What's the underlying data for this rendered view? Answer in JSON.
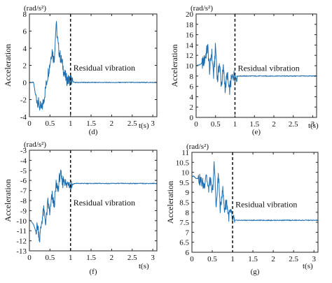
{
  "chart_data": [
    {
      "type": "line",
      "panel": "(d)",
      "unit": "(rad/s²)",
      "ylabel": "Acceleration",
      "xlabel": "t(s)",
      "xlim": [
        0,
        3.1
      ],
      "ylim": [
        -4,
        8
      ],
      "xticks": [
        0,
        0.5,
        1,
        1.5,
        2,
        2.5,
        3
      ],
      "xtick_labels": [
        "0",
        "0.5",
        "1",
        "1.5",
        "2",
        "2.5",
        "3"
      ],
      "yticks": [
        -4,
        -2,
        0,
        2,
        4,
        6,
        8
      ],
      "ytick_labels": [
        "-4",
        "-2",
        "0",
        "2",
        "4",
        "6",
        "8"
      ],
      "grid": false,
      "annotation": "Residual vibration",
      "vline_x": 1.0,
      "series_color": "#1f6fb0",
      "x": [
        0,
        0.1,
        0.15,
        0.2,
        0.25,
        0.3,
        0.35,
        0.4,
        0.45,
        0.5,
        0.55,
        0.6,
        0.65,
        0.7,
        0.75,
        0.8,
        0.85,
        0.9,
        0.95,
        1.0,
        1.05,
        1.1,
        1.5,
        2.0,
        2.5,
        3.1
      ],
      "y": [
        0,
        0,
        -1.5,
        -2.2,
        -2.8,
        -3.1,
        -2.0,
        -0.5,
        1.0,
        2.2,
        3.8,
        2.5,
        6.9,
        4.2,
        3.0,
        2.2,
        1.0,
        0.4,
        0.2,
        0.4,
        0.1,
        0.0,
        0.0,
        0.0,
        0.0,
        0.0
      ]
    },
    {
      "type": "line",
      "panel": "(e)",
      "unit": "(rad/s²)",
      "ylabel": "Acceleration",
      "xlabel": "t(s)",
      "xlim": [
        0,
        3.1
      ],
      "ylim": [
        0,
        20
      ],
      "xticks": [
        0,
        0.5,
        1,
        1.5,
        2,
        2.5,
        3
      ],
      "xtick_labels": [
        "0",
        "0.5",
        "1",
        "1.5",
        "2",
        "2.5",
        "3"
      ],
      "yticks": [
        0,
        2,
        4,
        6,
        8,
        10,
        12,
        14,
        16,
        18,
        20
      ],
      "ytick_labels": [
        "0",
        "2",
        "4",
        "6",
        "8",
        "10",
        "12",
        "14",
        "16",
        "18",
        "20"
      ],
      "grid": false,
      "annotation": "Residual vibration",
      "vline_x": 1.0,
      "series_color": "#1f6fb0",
      "x": [
        0,
        0.1,
        0.2,
        0.3,
        0.35,
        0.4,
        0.45,
        0.5,
        0.55,
        0.6,
        0.65,
        0.7,
        0.75,
        0.8,
        0.85,
        0.9,
        0.95,
        1.0,
        1.1,
        1.5,
        2.0,
        2.5,
        3.1
      ],
      "y": [
        10.0,
        10.2,
        10.8,
        13.5,
        9.0,
        12.8,
        8.0,
        13.8,
        7.0,
        10.5,
        6.2,
        9.5,
        5.5,
        8.5,
        5.0,
        7.0,
        8.2,
        7.9,
        8.0,
        8.0,
        8.0,
        8.0,
        8.0
      ]
    },
    {
      "type": "line",
      "panel": "(f)",
      "unit": "(rad/s²)",
      "ylabel": "Acceleration",
      "xlabel": "t(s)",
      "xlim": [
        0,
        3.1
      ],
      "ylim": [
        -13,
        -3
      ],
      "xticks": [
        0,
        0.5,
        1,
        1.5,
        2,
        2.5,
        3
      ],
      "xtick_labels": [
        "0",
        "0.5",
        "1",
        "1.5",
        "2",
        "2.5",
        "3"
      ],
      "yticks": [
        -13,
        -12,
        -11,
        -10,
        -9,
        -8,
        -7,
        -6,
        -5,
        -4,
        -3
      ],
      "ytick_labels": [
        "-13",
        "-12",
        "-11",
        "-10",
        "-9",
        "-8",
        "-7",
        "-6",
        "-5",
        "-4",
        "-3"
      ],
      "grid": false,
      "annotation": "Residual vibration",
      "vline_x": 1.0,
      "series_color": "#1f6fb0",
      "x": [
        0,
        0.05,
        0.1,
        0.15,
        0.2,
        0.25,
        0.3,
        0.35,
        0.4,
        0.45,
        0.5,
        0.55,
        0.6,
        0.65,
        0.7,
        0.75,
        0.8,
        0.85,
        0.9,
        0.95,
        1.0,
        1.1,
        1.5,
        2.0,
        2.5,
        3.1
      ],
      "y": [
        -9.9,
        -10.1,
        -10.4,
        -11.0,
        -10.5,
        -11.8,
        -10.0,
        -9.0,
        -10.2,
        -8.2,
        -9.3,
        -7.5,
        -8.5,
        -6.5,
        -6.8,
        -5.2,
        -6.3,
        -5.8,
        -6.6,
        -6.0,
        -6.5,
        -6.3,
        -6.3,
        -6.3,
        -6.3,
        -6.3
      ]
    },
    {
      "type": "line",
      "panel": "(g)",
      "unit": "(rad/s²)",
      "ylabel": "Acceleration",
      "xlabel": "t(s)",
      "xlim": [
        0,
        3.1
      ],
      "ylim": [
        6,
        11
      ],
      "xticks": [
        0,
        0.5,
        1,
        1.5,
        2,
        2.5,
        3
      ],
      "xtick_labels": [
        "0",
        "0.5",
        "1",
        "1.5",
        "2",
        "2.5",
        "3"
      ],
      "yticks": [
        6,
        6.5,
        7,
        7.5,
        8,
        8.5,
        9,
        9.5,
        10,
        10.5,
        11
      ],
      "ytick_labels": [
        "6",
        "6.5",
        "7",
        "7.5",
        "8",
        "8.5",
        "9",
        "9.5",
        "10",
        "10.5",
        "11"
      ],
      "grid": false,
      "annotation": "Residual vibration",
      "vline_x": 1.0,
      "series_color": "#1f6fb0",
      "x": [
        0,
        0.05,
        0.1,
        0.15,
        0.2,
        0.25,
        0.3,
        0.35,
        0.4,
        0.45,
        0.5,
        0.55,
        0.6,
        0.65,
        0.7,
        0.75,
        0.8,
        0.85,
        0.9,
        0.95,
        1.0,
        1.1,
        1.5,
        2.0,
        2.5,
        3.1
      ],
      "y": [
        9.8,
        9.8,
        9.7,
        9.7,
        9.6,
        9.5,
        9.3,
        10.0,
        9.1,
        9.6,
        8.9,
        10.4,
        8.2,
        10.0,
        8.0,
        9.3,
        8.1,
        8.6,
        7.8,
        8.0,
        7.6,
        7.6,
        7.6,
        7.6,
        7.6,
        7.6
      ]
    }
  ]
}
